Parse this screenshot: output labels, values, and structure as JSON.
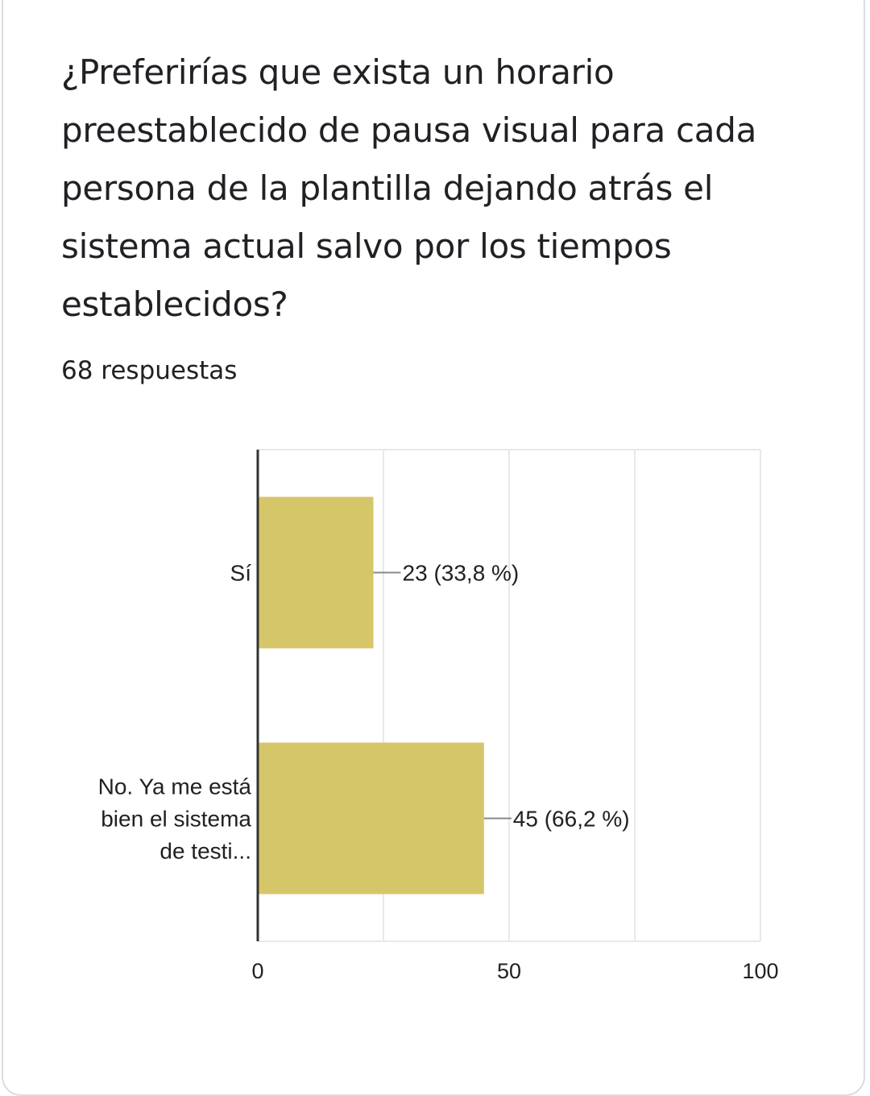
{
  "question": {
    "title": "¿Preferirías que exista un horario preestablecido de pausa visual para cada persona de la plantilla dejando atrás el sistema actual salvo por los tiempos establecidos?",
    "responses_count": "68 respuestas"
  },
  "chart_data": {
    "type": "bar",
    "orientation": "horizontal",
    "categories": [
      [
        "Sí"
      ],
      [
        "No. Ya me está",
        "bien el sistema",
        "de testi..."
      ]
    ],
    "values": [
      23,
      45
    ],
    "data_labels": [
      "23 (33,8 %)",
      "45 (66,2 %)"
    ],
    "xlim": [
      0,
      100
    ],
    "xticks": [
      0,
      50,
      100
    ],
    "xtick_labels": [
      "0",
      "50",
      "100"
    ],
    "grid": true,
    "bar_color": "#d6c66a",
    "gridline_color": "#e8e8e8",
    "axis_color": "#333333"
  }
}
